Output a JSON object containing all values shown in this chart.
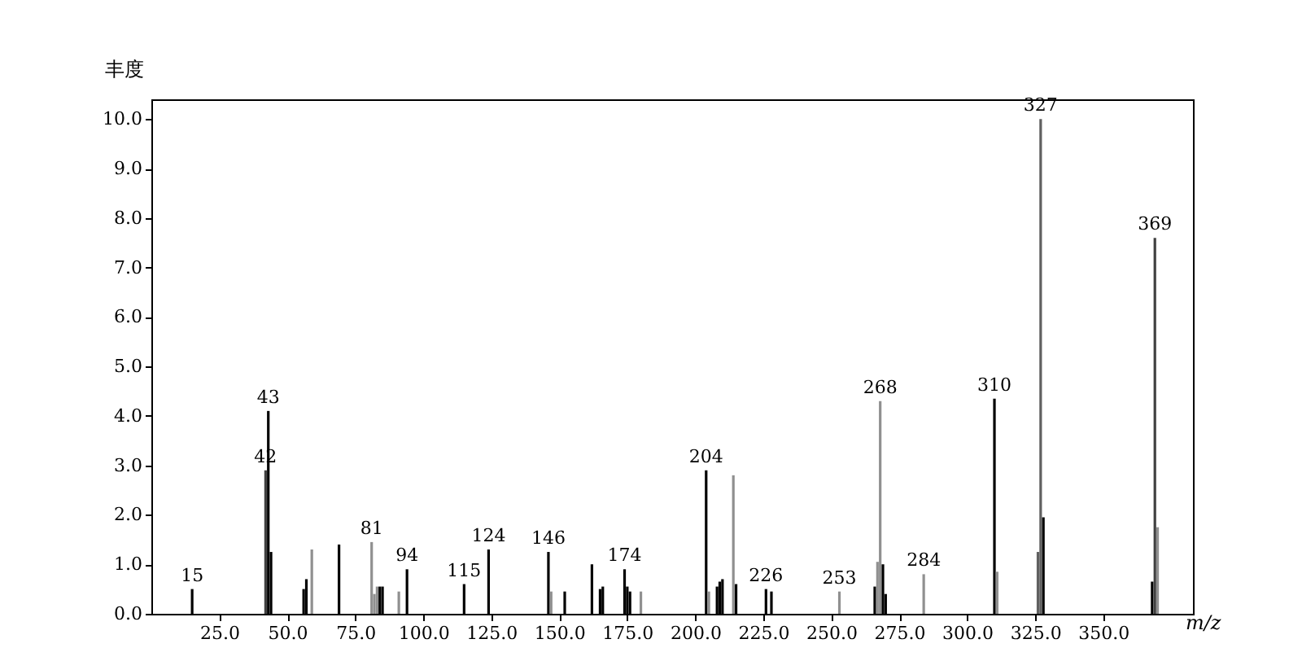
{
  "chart_data": {
    "type": "bar",
    "ylabel": "丰度",
    "xlabel": "m/z",
    "x": [
      15,
      42,
      43,
      44,
      56,
      57,
      59,
      69,
      81,
      82,
      83,
      84,
      85,
      91,
      94,
      115,
      124,
      146,
      147,
      152,
      162,
      165,
      166,
      174,
      175,
      176,
      180,
      204,
      205,
      208,
      209,
      210,
      214,
      215,
      226,
      228,
      253,
      266,
      267,
      268,
      269,
      270,
      284,
      310,
      311,
      326,
      327,
      328,
      368,
      369,
      370
    ],
    "values": [
      0.5,
      2.9,
      4.1,
      1.25,
      0.5,
      0.7,
      1.3,
      1.4,
      1.45,
      0.4,
      0.55,
      0.55,
      0.55,
      0.45,
      0.9,
      0.6,
      1.3,
      1.25,
      0.45,
      0.45,
      1.0,
      0.5,
      0.55,
      0.9,
      0.55,
      0.45,
      0.45,
      2.9,
      0.45,
      0.55,
      0.65,
      0.7,
      2.8,
      0.6,
      0.5,
      0.45,
      0.45,
      0.55,
      1.05,
      4.3,
      1.0,
      0.4,
      0.8,
      4.35,
      0.85,
      1.25,
      10.0,
      1.95,
      0.65,
      7.6,
      1.75
    ],
    "colors": [
      "#000000",
      "#404040",
      "#000000",
      "#000000",
      "#000000",
      "#000000",
      "#909090",
      "#000000",
      "#909090",
      "#909090",
      "#909090",
      "#000000",
      "#000000",
      "#909090",
      "#000000",
      "#000000",
      "#000000",
      "#000000",
      "#909090",
      "#000000",
      "#000000",
      "#000000",
      "#000000",
      "#000000",
      "#000000",
      "#000000",
      "#909090",
      "#000000",
      "#909090",
      "#000000",
      "#000000",
      "#000000",
      "#909090",
      "#000000",
      "#000000",
      "#000000",
      "#909090",
      "#000000",
      "#909090",
      "#909090",
      "#000000",
      "#000000",
      "#909090",
      "#000000",
      "#909090",
      "#606060",
      "#606060",
      "#000000",
      "#000000",
      "#404040",
      "#909090"
    ],
    "xlim": [
      0,
      383
    ],
    "ylim": [
      0,
      10.4
    ],
    "xticks": [
      {
        "value": 25,
        "label": "25.0"
      },
      {
        "value": 50,
        "label": "50.0"
      },
      {
        "value": 75,
        "label": "75.0"
      },
      {
        "value": 100,
        "label": "100.0"
      },
      {
        "value": 125,
        "label": "125.0"
      },
      {
        "value": 150,
        "label": "150.0"
      },
      {
        "value": 175,
        "label": "175.0"
      },
      {
        "value": 200,
        "label": "200.0"
      },
      {
        "value": 225,
        "label": "225.0"
      },
      {
        "value": 250,
        "label": "250.0"
      },
      {
        "value": 275,
        "label": "275.0"
      },
      {
        "value": 300,
        "label": "300.0"
      },
      {
        "value": 325,
        "label": "325.0"
      },
      {
        "value": 350,
        "label": "350.0"
      }
    ],
    "yticks": [
      {
        "value": 0,
        "label": "0.0"
      },
      {
        "value": 1,
        "label": "1.0"
      },
      {
        "value": 2,
        "label": "2.0"
      },
      {
        "value": 3,
        "label": "3.0"
      },
      {
        "value": 4,
        "label": "4.0"
      },
      {
        "value": 5,
        "label": "5.0"
      },
      {
        "value": 6,
        "label": "6.0"
      },
      {
        "value": 7,
        "label": "7.0"
      },
      {
        "value": 8,
        "label": "8.0"
      },
      {
        "value": 9,
        "label": "9.0"
      },
      {
        "value": 10,
        "label": "10.0"
      }
    ],
    "annotations": [
      {
        "text": "15",
        "x": 15,
        "y": 0.5
      },
      {
        "text": "42",
        "x": 42,
        "y": 2.9
      },
      {
        "text": "43",
        "x": 43,
        "y": 4.1
      },
      {
        "text": "81",
        "x": 81,
        "y": 1.45
      },
      {
        "text": "94",
        "x": 94,
        "y": 0.9
      },
      {
        "text": "115",
        "x": 115,
        "y": 0.6
      },
      {
        "text": "124",
        "x": 124,
        "y": 1.3
      },
      {
        "text": "146",
        "x": 146,
        "y": 1.25
      },
      {
        "text": "174",
        "x": 174,
        "y": 0.9
      },
      {
        "text": "204",
        "x": 204,
        "y": 2.9
      },
      {
        "text": "226",
        "x": 226,
        "y": 0.5
      },
      {
        "text": "253",
        "x": 253,
        "y": 0.45
      },
      {
        "text": "268",
        "x": 268,
        "y": 4.3
      },
      {
        "text": "284",
        "x": 284,
        "y": 0.8
      },
      {
        "text": "310",
        "x": 310,
        "y": 4.35
      },
      {
        "text": "327",
        "x": 327,
        "y": 10.0
      },
      {
        "text": "369",
        "x": 369,
        "y": 7.6
      }
    ],
    "grid": false
  }
}
